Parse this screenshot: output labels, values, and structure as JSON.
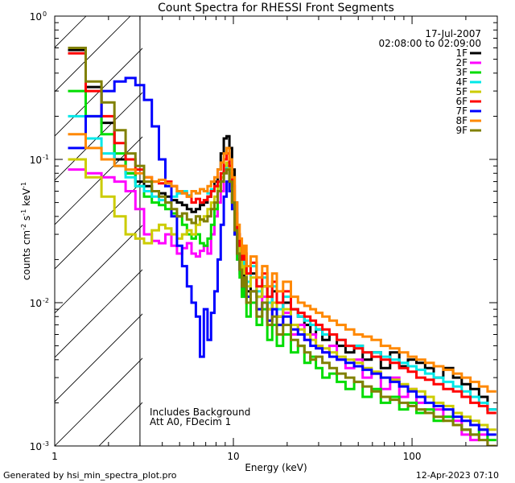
{
  "chart_data": {
    "type": "line",
    "title": "Count Spectra for RHESSI Front Segments",
    "date": "17-Jul-2007",
    "time_range": "02:08:00 to 02:09:00",
    "xlabel": "Energy (keV)",
    "ylabel": {
      "main": "counts cm",
      "exp1": "-2",
      "mid": " s",
      "exp2": "-1",
      "tail": " keV",
      "exp3": "-1"
    },
    "xscale": "log",
    "yscale": "log",
    "xlim": [
      1,
      300
    ],
    "ylim": [
      0.001,
      1
    ],
    "x_ticks": [
      {
        "value": 1,
        "label": "1"
      },
      {
        "value": 10,
        "label": "10"
      },
      {
        "value": 100,
        "label": "100"
      }
    ],
    "y_ticks": [
      {
        "value": 1,
        "label": "10",
        "exp": "0"
      },
      {
        "value": 0.1,
        "label": "10",
        "exp": "-1"
      },
      {
        "value": 0.01,
        "label": "10",
        "exp": "-2"
      },
      {
        "value": 0.001,
        "label": "10",
        "exp": "-3"
      }
    ],
    "hatched_region": {
      "x_from": 1,
      "x_to": 3
    },
    "annotations": [
      "Includes Background",
      "Att A0, FDecim 1"
    ],
    "legend_position": "top-right",
    "footer_left": "Generated by hsi_min_spectra_plot.pro",
    "footer_right": "12-Apr-2023 07:10",
    "energy_bins_keV": [
      1.33,
      1.67,
      2.0,
      2.33,
      2.67,
      3.0,
      3.33,
      3.67,
      4.0,
      4.33,
      4.67,
      5.0,
      5.33,
      5.67,
      6.0,
      6.33,
      6.67,
      7.0,
      7.33,
      7.67,
      8.0,
      8.33,
      8.67,
      9.0,
      9.33,
      9.67,
      10.0,
      10.33,
      10.67,
      11.0,
      11.33,
      11.67,
      12.0,
      13.0,
      14.0,
      15.0,
      16.0,
      17.0,
      18.0,
      20.0,
      22.0,
      24.0,
      26.0,
      28.0,
      30.0,
      33.0,
      36.0,
      40.0,
      45.0,
      50.0,
      56.0,
      63.0,
      71.0,
      80.0,
      90.0,
      100.0,
      112.0,
      125.0,
      140.0,
      160.0,
      180.0,
      200.0,
      225.0,
      250.0,
      280.0
    ],
    "series": [
      {
        "name": "1F",
        "color": "#000000",
        "values": [
          0.58,
          0.32,
          0.18,
          0.1,
          0.08,
          0.07,
          0.065,
          0.06,
          0.058,
          0.055,
          0.052,
          0.05,
          0.048,
          0.045,
          0.043,
          0.045,
          0.048,
          0.05,
          0.055,
          0.06,
          0.07,
          0.085,
          0.11,
          0.14,
          0.145,
          0.12,
          0.085,
          0.05,
          0.03,
          0.024,
          0.015,
          0.02,
          0.012,
          0.016,
          0.011,
          0.013,
          0.009,
          0.012,
          0.008,
          0.01,
          0.009,
          0.008,
          0.007,
          0.006,
          0.0065,
          0.0055,
          0.006,
          0.005,
          0.0045,
          0.005,
          0.004,
          0.0045,
          0.0035,
          0.0045,
          0.0036,
          0.004,
          0.0038,
          0.0035,
          0.003,
          0.0035,
          0.003,
          0.0027,
          0.0025,
          0.0022,
          0.0018
        ]
      },
      {
        "name": "2F",
        "color": "#ff00ff",
        "values": [
          0.085,
          0.08,
          0.075,
          0.07,
          0.06,
          0.045,
          0.03,
          0.027,
          0.026,
          0.03,
          0.025,
          0.022,
          0.024,
          0.026,
          0.022,
          0.021,
          0.023,
          0.025,
          0.022,
          0.03,
          0.04,
          0.05,
          0.06,
          0.08,
          0.085,
          0.07,
          0.05,
          0.03,
          0.02,
          0.016,
          0.012,
          0.014,
          0.01,
          0.012,
          0.009,
          0.011,
          0.0075,
          0.009,
          0.007,
          0.0085,
          0.006,
          0.007,
          0.0055,
          0.006,
          0.005,
          0.0045,
          0.005,
          0.004,
          0.0035,
          0.004,
          0.003,
          0.0032,
          0.0025,
          0.003,
          0.0022,
          0.0025,
          0.002,
          0.0022,
          0.0018,
          0.0016,
          0.0015,
          0.0012,
          0.0011,
          0.0012,
          0.001
        ]
      },
      {
        "name": "3F",
        "color": "#00dd00",
        "values": [
          0.3,
          0.2,
          0.15,
          0.11,
          0.08,
          0.065,
          0.055,
          0.05,
          0.048,
          0.045,
          0.042,
          0.04,
          0.035,
          0.03,
          0.028,
          0.03,
          0.026,
          0.025,
          0.028,
          0.035,
          0.045,
          0.06,
          0.07,
          0.085,
          0.09,
          0.07,
          0.05,
          0.03,
          0.02,
          0.015,
          0.011,
          0.013,
          0.008,
          0.01,
          0.007,
          0.009,
          0.0055,
          0.007,
          0.005,
          0.006,
          0.0045,
          0.005,
          0.0038,
          0.0042,
          0.0035,
          0.003,
          0.0032,
          0.0028,
          0.0025,
          0.0028,
          0.0022,
          0.0025,
          0.002,
          0.0022,
          0.0018,
          0.002,
          0.0017,
          0.0018,
          0.0015,
          0.0016,
          0.0014,
          0.0013,
          0.0012,
          0.0013,
          0.0011
        ]
      },
      {
        "name": "4F",
        "color": "#00e8e8",
        "values": [
          0.2,
          0.14,
          0.11,
          0.09,
          0.075,
          0.065,
          0.06,
          0.055,
          0.052,
          0.05,
          0.055,
          0.058,
          0.06,
          0.056,
          0.06,
          0.058,
          0.062,
          0.06,
          0.058,
          0.062,
          0.065,
          0.07,
          0.075,
          0.085,
          0.09,
          0.08,
          0.06,
          0.04,
          0.028,
          0.022,
          0.017,
          0.02,
          0.014,
          0.018,
          0.012,
          0.015,
          0.01,
          0.013,
          0.009,
          0.011,
          0.009,
          0.008,
          0.0075,
          0.007,
          0.0065,
          0.006,
          0.006,
          0.0055,
          0.005,
          0.005,
          0.0045,
          0.0045,
          0.0042,
          0.004,
          0.0038,
          0.0036,
          0.0034,
          0.0032,
          0.003,
          0.0028,
          0.0026,
          0.0024,
          0.0022,
          0.002,
          0.0018
        ]
      },
      {
        "name": "5F",
        "color": "#cccc00",
        "values": [
          0.1,
          0.075,
          0.055,
          0.04,
          0.03,
          0.028,
          0.026,
          0.032,
          0.035,
          0.033,
          0.03,
          0.028,
          0.03,
          0.032,
          0.03,
          0.035,
          0.038,
          0.04,
          0.045,
          0.05,
          0.055,
          0.065,
          0.075,
          0.09,
          0.095,
          0.08,
          0.06,
          0.04,
          0.028,
          0.022,
          0.016,
          0.018,
          0.013,
          0.015,
          0.011,
          0.013,
          0.009,
          0.01,
          0.008,
          0.009,
          0.007,
          0.0065,
          0.006,
          0.0055,
          0.005,
          0.0048,
          0.0045,
          0.0042,
          0.004,
          0.0038,
          0.0035,
          0.0033,
          0.003,
          0.0029,
          0.0027,
          0.0025,
          0.0024,
          0.0022,
          0.002,
          0.0019,
          0.0017,
          0.0016,
          0.0015,
          0.0014,
          0.0013
        ]
      },
      {
        "name": "6F",
        "color": "#ff0000",
        "values": [
          0.55,
          0.3,
          0.2,
          0.13,
          0.1,
          0.085,
          0.075,
          0.07,
          0.068,
          0.07,
          0.065,
          0.06,
          0.058,
          0.055,
          0.05,
          0.053,
          0.05,
          0.052,
          0.055,
          0.06,
          0.065,
          0.07,
          0.08,
          0.1,
          0.11,
          0.09,
          0.065,
          0.042,
          0.03,
          0.025,
          0.02,
          0.022,
          0.016,
          0.019,
          0.013,
          0.016,
          0.011,
          0.014,
          0.01,
          0.012,
          0.009,
          0.0085,
          0.008,
          0.0075,
          0.007,
          0.0065,
          0.006,
          0.0055,
          0.005,
          0.0048,
          0.0045,
          0.0042,
          0.004,
          0.0038,
          0.0035,
          0.0033,
          0.003,
          0.0029,
          0.0027,
          0.0025,
          0.0024,
          0.0022,
          0.002,
          0.0019,
          0.0017
        ]
      },
      {
        "name": "7F",
        "color": "#0000ff",
        "values": [
          0.12,
          0.2,
          0.3,
          0.35,
          0.37,
          0.33,
          0.26,
          0.17,
          0.1,
          0.065,
          0.04,
          0.025,
          0.018,
          0.013,
          0.01,
          0.008,
          0.0042,
          0.009,
          0.0055,
          0.0085,
          0.012,
          0.02,
          0.035,
          0.055,
          0.07,
          0.06,
          0.045,
          0.03,
          0.022,
          0.017,
          0.013,
          0.015,
          0.011,
          0.012,
          0.009,
          0.01,
          0.0075,
          0.009,
          0.007,
          0.008,
          0.0065,
          0.006,
          0.0055,
          0.005,
          0.0048,
          0.0045,
          0.0042,
          0.004,
          0.0038,
          0.0036,
          0.0034,
          0.0032,
          0.003,
          0.0028,
          0.0026,
          0.0024,
          0.0022,
          0.002,
          0.0019,
          0.0018,
          0.0016,
          0.0015,
          0.0014,
          0.0013,
          0.0012
        ]
      },
      {
        "name": "8F",
        "color": "#ff8800",
        "values": [
          0.15,
          0.12,
          0.1,
          0.09,
          0.085,
          0.08,
          0.075,
          0.07,
          0.072,
          0.068,
          0.065,
          0.06,
          0.058,
          0.055,
          0.06,
          0.058,
          0.062,
          0.06,
          0.065,
          0.07,
          0.075,
          0.085,
          0.095,
          0.11,
          0.12,
          0.1,
          0.075,
          0.05,
          0.035,
          0.028,
          0.022,
          0.025,
          0.018,
          0.021,
          0.015,
          0.018,
          0.013,
          0.016,
          0.012,
          0.014,
          0.011,
          0.01,
          0.0095,
          0.009,
          0.0085,
          0.008,
          0.0075,
          0.007,
          0.0065,
          0.006,
          0.0058,
          0.0055,
          0.005,
          0.0048,
          0.0045,
          0.0042,
          0.004,
          0.0038,
          0.0036,
          0.0034,
          0.0032,
          0.003,
          0.0028,
          0.0026,
          0.0024
        ]
      },
      {
        "name": "9F",
        "color": "#808000",
        "values": [
          0.6,
          0.35,
          0.25,
          0.16,
          0.11,
          0.09,
          0.07,
          0.06,
          0.055,
          0.05,
          0.045,
          0.04,
          0.042,
          0.038,
          0.036,
          0.04,
          0.038,
          0.037,
          0.04,
          0.045,
          0.05,
          0.06,
          0.07,
          0.08,
          0.085,
          0.07,
          0.05,
          0.032,
          0.022,
          0.017,
          0.013,
          0.015,
          0.01,
          0.012,
          0.008,
          0.01,
          0.007,
          0.008,
          0.006,
          0.007,
          0.0055,
          0.005,
          0.0045,
          0.004,
          0.0042,
          0.0038,
          0.0035,
          0.0032,
          0.003,
          0.0028,
          0.0026,
          0.0024,
          0.0022,
          0.0021,
          0.002,
          0.0019,
          0.0018,
          0.0017,
          0.0016,
          0.0015,
          0.0014,
          0.0013,
          0.0012,
          0.0011,
          0.001
        ]
      }
    ]
  }
}
